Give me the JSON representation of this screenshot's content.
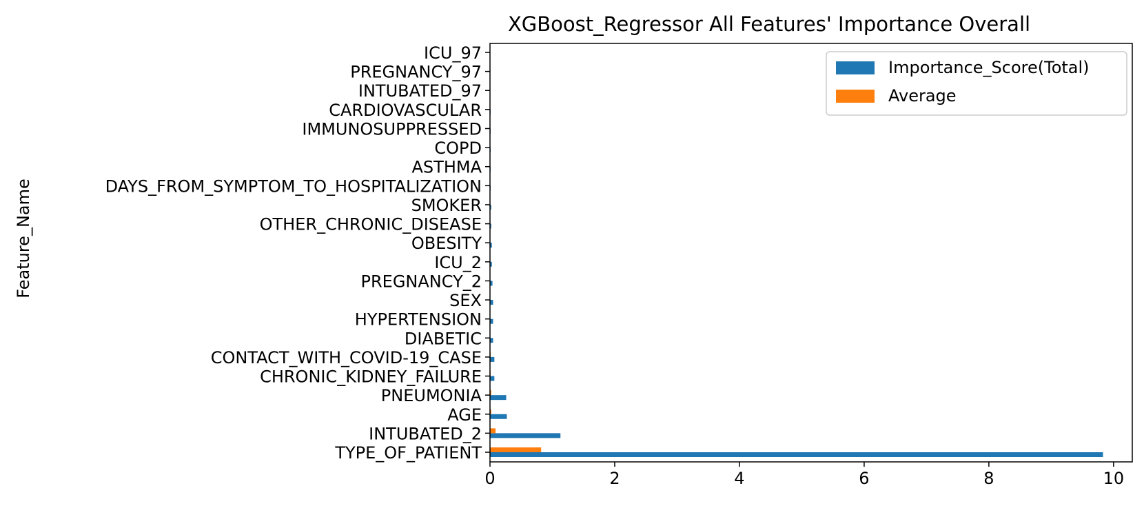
{
  "chart_data": {
    "type": "bar",
    "orientation": "horizontal",
    "title": "XGBoost_Regressor All Features' Importance Overall",
    "xlabel": "",
    "ylabel": "Feature_Name",
    "xlim": [
      0,
      10.3
    ],
    "xticks": [
      0,
      2,
      4,
      6,
      8,
      10
    ],
    "grid": false,
    "legend_position": "top-right",
    "categories": [
      "TYPE_OF_PATIENT",
      "INTUBATED_2",
      "AGE",
      "PNEUMONIA",
      "CHRONIC_KIDNEY_FAILURE",
      "CONTACT_WITH_COVID-19_CASE",
      "DIABETIC",
      "HYPERTENSION",
      "SEX",
      "PREGNANCY_2",
      "ICU_2",
      "OBESITY",
      "OTHER_CHRONIC_DISEASE",
      "SMOKER",
      "DAYS_FROM_SYMPTOM_TO_HOSPITALIZATION",
      "ASTHMA",
      "COPD",
      "IMMUNOSUPPRESSED",
      "CARDIOVASCULAR",
      "INTUBATED_97",
      "PREGNANCY_97",
      "ICU_97"
    ],
    "series": [
      {
        "name": "Importance_Score(Total)",
        "color": "#1f77b4",
        "values": [
          9.83,
          1.13,
          0.27,
          0.26,
          0.07,
          0.07,
          0.05,
          0.05,
          0.05,
          0.04,
          0.03,
          0.03,
          0.02,
          0.02,
          0.01,
          0.01,
          0.01,
          0.01,
          0.01,
          0.0,
          0.0,
          0.0
        ]
      },
      {
        "name": "Average",
        "color": "#ff7f0e",
        "values": [
          0.82,
          0.09,
          0.02,
          0.02,
          0.01,
          0.01,
          0.0,
          0.0,
          0.0,
          0.0,
          0.0,
          0.0,
          0.0,
          0.0,
          0.0,
          0.0,
          0.0,
          0.0,
          0.0,
          0.0,
          0.0,
          0.0
        ]
      }
    ]
  }
}
